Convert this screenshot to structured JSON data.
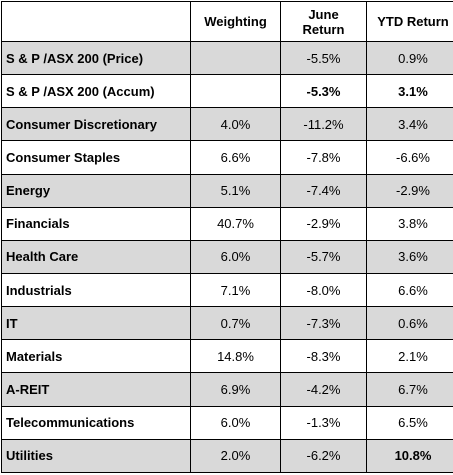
{
  "header": {
    "sector": "",
    "weighting": "Weighting",
    "june_return_line1": "June",
    "june_return_line2": "Return",
    "ytd_return": "YTD Return"
  },
  "colors": {
    "negative": "#ff0000",
    "positive": "#00b050",
    "shaded_row": "#d9d9d9",
    "white_row": "#ffffff"
  },
  "rows": [
    {
      "name": "S & P /ASX 200 (Price)",
      "weighting": "",
      "june": "-5.5%",
      "ytd": "0.9%"
    },
    {
      "name": "S & P /ASX 200 (Accum)",
      "weighting": "",
      "june": "-5.3%",
      "ytd": "3.1%"
    },
    {
      "name": "Consumer Discretionary",
      "weighting": "4.0%",
      "june": "-11.2%",
      "ytd": "3.4%"
    },
    {
      "name": "Consumer Staples",
      "weighting": "6.6%",
      "june": "-7.8%",
      "ytd": "-6.6%"
    },
    {
      "name": "Energy",
      "weighting": "5.1%",
      "june": "-7.4%",
      "ytd": "-2.9%"
    },
    {
      "name": "Financials",
      "weighting": "40.7%",
      "june": "-2.9%",
      "ytd": "3.8%"
    },
    {
      "name": "Health Care",
      "weighting": "6.0%",
      "june": "-5.7%",
      "ytd": "3.6%"
    },
    {
      "name": "Industrials",
      "weighting": "7.1%",
      "june": "-8.0%",
      "ytd": "6.6%"
    },
    {
      "name": "IT",
      "weighting": "0.7%",
      "june": "-7.3%",
      "ytd": "0.6%"
    },
    {
      "name": "Materials",
      "weighting": "14.8%",
      "june": "-8.3%",
      "ytd": "2.1%"
    },
    {
      "name": "A-REIT",
      "weighting": "6.9%",
      "june": "-4.2%",
      "ytd": "6.7%"
    },
    {
      "name": "Telecommunications",
      "weighting": "6.0%",
      "june": "-1.3%",
      "ytd": "6.5%"
    },
    {
      "name": "Utilities",
      "weighting": "2.0%",
      "june": "-6.2%",
      "ytd": "10.8%"
    }
  ]
}
